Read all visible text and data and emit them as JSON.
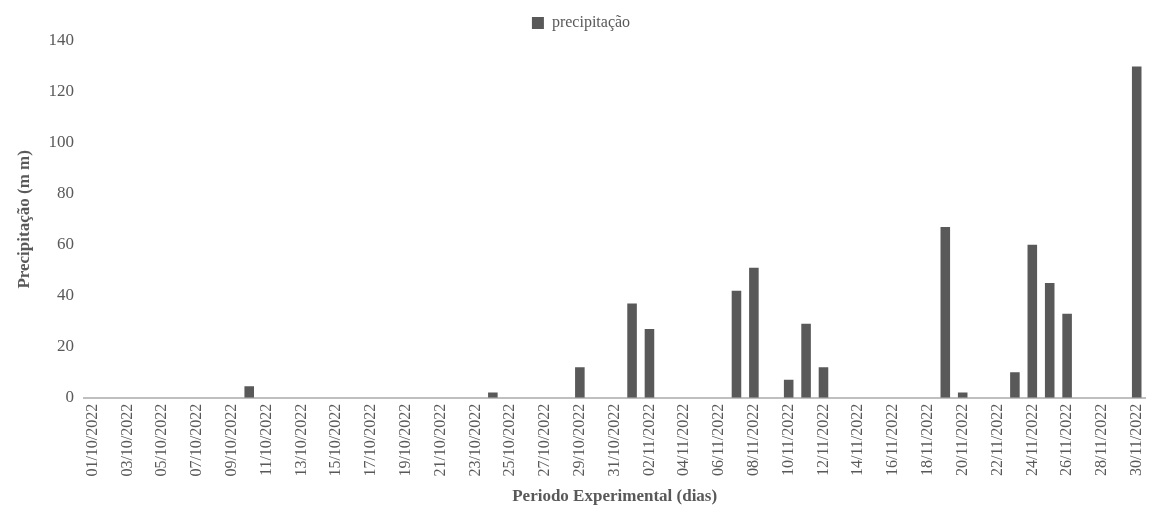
{
  "chart_data": {
    "type": "bar",
    "xlabel": "Periodo Experimental (dias)",
    "ylabel": "Precipitação (m m)",
    "legend": "top",
    "categories": [
      "01/10/2022",
      null,
      "03/10/2022",
      null,
      "05/10/2022",
      null,
      "07/10/2022",
      null,
      "09/10/2022",
      null,
      "11/10/2022",
      null,
      "13/10/2022",
      null,
      "15/10/2022",
      null,
      "17/10/2022",
      null,
      "19/10/2022",
      null,
      "21/10/2022",
      null,
      "23/10/2022",
      null,
      "25/10/2022",
      null,
      "27/10/2022",
      null,
      "29/10/2022",
      null,
      "31/10/2022",
      null,
      "02/11/2022",
      null,
      "04/11/2022",
      null,
      "06/11/2022",
      null,
      "08/11/2022",
      null,
      "10/11/2022",
      null,
      "12/11/2022",
      null,
      "14/11/2022",
      null,
      "16/11/2022",
      null,
      "18/11/2022",
      null,
      "20/11/2022",
      null,
      "22/11/2022",
      null,
      "24/11/2022",
      null,
      "26/11/2022",
      null,
      "28/11/2022",
      null,
      "30/11/2022"
    ],
    "series": [
      {
        "name": "precipitação",
        "color": "#595959",
        "values": [
          0,
          0,
          0,
          0,
          0,
          0,
          0,
          0,
          0,
          4.5,
          0,
          0,
          0,
          0,
          0,
          0,
          0,
          0,
          0,
          0,
          0,
          0,
          0,
          2,
          0,
          0,
          0,
          0,
          12,
          0,
          0,
          37,
          27,
          0,
          0,
          0,
          0,
          42,
          51,
          0,
          7,
          29,
          12,
          0,
          0,
          0,
          0,
          0,
          0,
          67,
          2,
          0,
          0,
          10,
          60,
          45,
          33,
          0,
          0,
          0,
          130
        ]
      }
    ],
    "ylim": [
      0,
      140
    ],
    "yticks": [
      0,
      20,
      40,
      60,
      80,
      100,
      120,
      140
    ],
    "grid": false
  }
}
